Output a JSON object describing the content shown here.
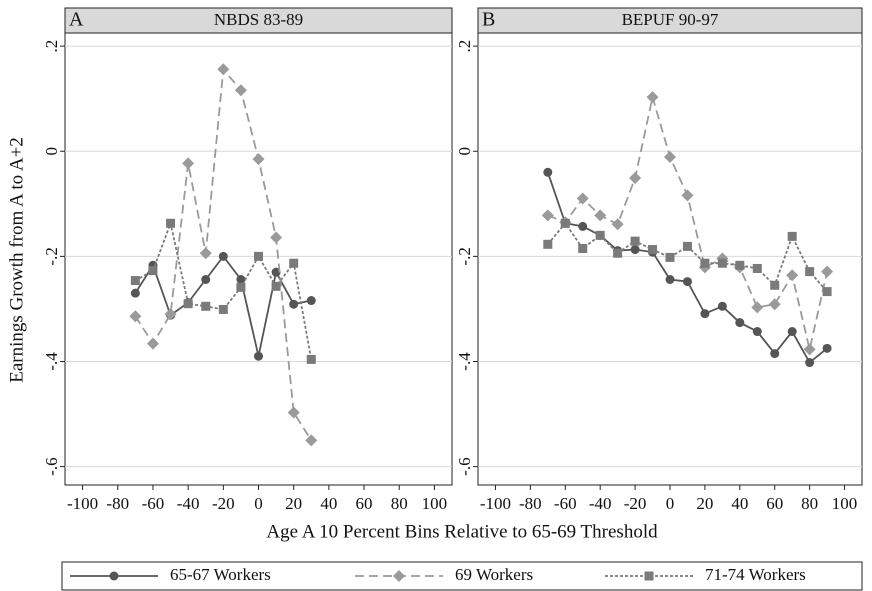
{
  "ylabel": "Earnings Growth from A to A+2",
  "xlabel": "Age A 10 Percent Bins Relative to 65-69 Threshold",
  "chart_data": [
    {
      "type": "line",
      "panel": "A",
      "title": "NBDS 83-89",
      "x": [
        -70,
        -60,
        -50,
        -40,
        -30,
        -20,
        -10,
        0,
        10,
        20,
        30
      ],
      "xlim": [
        -110,
        110
      ],
      "xticks": [
        -100,
        -80,
        -60,
        -40,
        -20,
        0,
        20,
        40,
        60,
        80,
        100
      ],
      "ylim": [
        -0.635,
        0.225
      ],
      "yticks": [
        {
          "value": -0.6,
          "label": "-.6"
        },
        {
          "value": -0.4,
          "label": "-.4"
        },
        {
          "value": -0.2,
          "label": "-.2"
        },
        0,
        {
          "value": 0.2,
          "label": ".2"
        }
      ],
      "grid": true,
      "series": [
        {
          "name": "65-67 Workers",
          "color": "#555555",
          "style": "solid",
          "marker": "circle",
          "values": [
            -0.27,
            -0.217,
            -0.312,
            -0.288,
            -0.244,
            -0.2,
            -0.244,
            -0.39,
            -0.23,
            -0.291,
            -0.284
          ]
        },
        {
          "name": "69 Workers",
          "color": "#9a9a9a",
          "style": "dashed",
          "marker": "diamond",
          "values": [
            -0.314,
            -0.366,
            -0.31,
            -0.023,
            -0.194,
            0.156,
            0.116,
            -0.015,
            -0.164,
            -0.497,
            -0.55
          ]
        },
        {
          "name": "71-74 Workers",
          "color": "#7a7a7a",
          "style": "dotted",
          "marker": "square",
          "values": [
            -0.246,
            -0.227,
            -0.137,
            -0.29,
            -0.295,
            -0.301,
            -0.259,
            -0.2,
            -0.257,
            -0.213,
            -0.396
          ]
        }
      ]
    },
    {
      "type": "line",
      "panel": "B",
      "title": "BEPUF 90-97",
      "x": [
        -70,
        -60,
        -50,
        -40,
        -30,
        -20,
        -10,
        0,
        10,
        20,
        30,
        40,
        50,
        60,
        70,
        80,
        90
      ],
      "xlim": [
        -110,
        110
      ],
      "xticks": [
        -100,
        -80,
        -60,
        -40,
        -20,
        0,
        20,
        40,
        60,
        80,
        100
      ],
      "ylim": [
        -0.635,
        0.225
      ],
      "yticks": [
        {
          "value": -0.6,
          "label": "-.6"
        },
        {
          "value": -0.4,
          "label": "-.4"
        },
        {
          "value": -0.2,
          "label": "-.2"
        },
        0,
        {
          "value": 0.2,
          "label": ".2"
        }
      ],
      "grid": true,
      "series": [
        {
          "name": "65-67 Workers",
          "color": "#555555",
          "style": "solid",
          "marker": "circle",
          "values": [
            -0.04,
            -0.137,
            -0.143,
            -0.16,
            -0.189,
            -0.187,
            -0.192,
            -0.244,
            -0.248,
            -0.309,
            -0.295,
            -0.326,
            -0.343,
            -0.385,
            -0.343,
            -0.402,
            -0.375
          ]
        },
        {
          "name": "69 Workers",
          "color": "#9a9a9a",
          "style": "dashed",
          "marker": "diamond",
          "values": [
            -0.122,
            -0.135,
            -0.09,
            -0.122,
            -0.139,
            -0.051,
            0.103,
            -0.011,
            -0.084,
            -0.221,
            -0.204,
            -0.221,
            -0.297,
            -0.291,
            -0.236,
            -0.377,
            -0.229
          ]
        },
        {
          "name": "71-74 Workers",
          "color": "#7a7a7a",
          "style": "dotted",
          "marker": "square",
          "values": [
            -0.177,
            -0.137,
            -0.185,
            -0.16,
            -0.194,
            -0.171,
            -0.187,
            -0.202,
            -0.181,
            -0.213,
            -0.213,
            -0.217,
            -0.223,
            -0.255,
            -0.162,
            -0.229,
            -0.267
          ]
        }
      ]
    }
  ]
}
